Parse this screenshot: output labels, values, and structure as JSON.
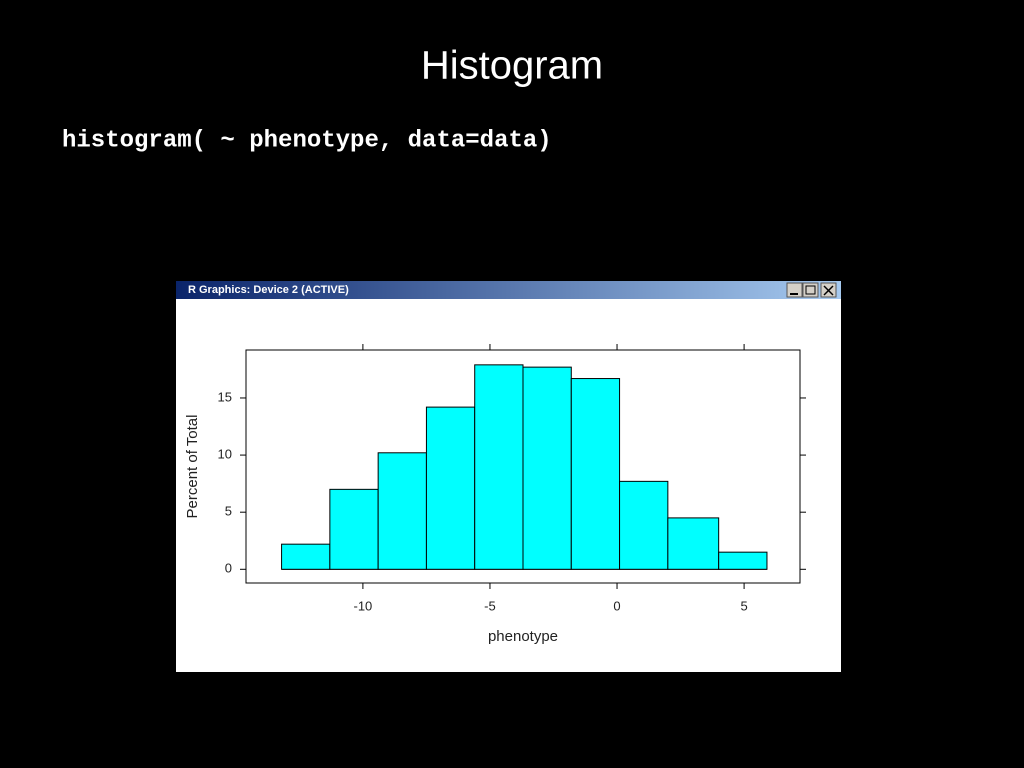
{
  "slide_title": "Histogram",
  "code": "histogram( ~ phenotype, data=data)",
  "window_title": "R Graphics: Device 2 (ACTIVE)",
  "chart_data": {
    "type": "histogram",
    "xlabel": "phenotype",
    "ylabel": "Percent of Total",
    "bins": [
      -13.2,
      -11.3,
      -9.4,
      -7.5,
      -5.6,
      -3.7,
      -1.8,
      0.1,
      2.0,
      4.0,
      5.9
    ],
    "counts": [
      2.2,
      7.0,
      10.2,
      14.2,
      17.9,
      17.7,
      16.7,
      7.7,
      4.5,
      1.5
    ],
    "color": "#00ffff",
    "xlim": [
      -14.6,
      7.2
    ],
    "ylim": [
      -1.2,
      19.2
    ],
    "xticks": [
      -10,
      -5,
      0,
      5
    ],
    "yticks": [
      0,
      5,
      10,
      15
    ]
  }
}
